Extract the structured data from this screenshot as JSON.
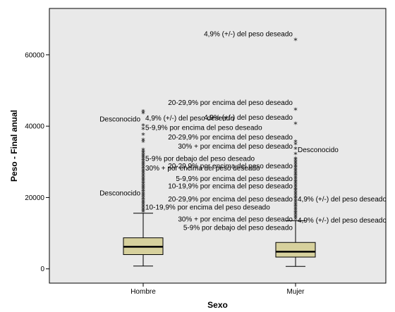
{
  "chart_data": {
    "type": "boxplot",
    "xlabel": "Sexo",
    "ylabel": "Peso - Final anual",
    "ylim": [
      -4000,
      73000
    ],
    "yticks": [
      0,
      20000,
      40000,
      60000
    ],
    "ytick_labels": [
      "0",
      "20000",
      "40000",
      "60000"
    ],
    "plot_background": "#e9e9e9",
    "box_fill": "#d7d19d",
    "categories": [
      "Hombre",
      "Mujer"
    ],
    "boxes": [
      {
        "category": "Hombre",
        "whisker_low": 800,
        "q1": 4000,
        "median": 6200,
        "q3": 8700,
        "whisker_high": 15600,
        "outliers_dense_from": 15800,
        "outliers_dense_to": 33500
      },
      {
        "category": "Mujer",
        "whisker_low": 700,
        "q1": 3300,
        "median": 4800,
        "q3": 7400,
        "whisker_high": 13500,
        "outliers_dense_from": 13800,
        "outliers_dense_to": 31000
      }
    ],
    "extreme_points": [
      {
        "category": "Hombre",
        "value": 44000
      },
      {
        "category": "Hombre",
        "value": 43500
      },
      {
        "category": "Hombre",
        "value": 40000
      },
      {
        "category": "Hombre",
        "value": 39000
      },
      {
        "category": "Hombre",
        "value": 37500
      },
      {
        "category": "Hombre",
        "value": 36000
      },
      {
        "category": "Hombre",
        "value": 35500
      },
      {
        "category": "Mujer",
        "value": 64000
      },
      {
        "category": "Mujer",
        "value": 44500
      },
      {
        "category": "Mujer",
        "value": 40500
      },
      {
        "category": "Mujer",
        "value": 35500
      },
      {
        "category": "Mujer",
        "value": 34800
      },
      {
        "category": "Mujer",
        "value": 33500
      },
      {
        "category": "Mujer",
        "value": 32000
      }
    ],
    "annotations": [
      {
        "category": "Hombre",
        "side": "left",
        "value": 42000,
        "text": "Desconocido"
      },
      {
        "category": "Hombre",
        "side": "right",
        "value": 42300,
        "text": "4,9% (+/-) del peso deseado"
      },
      {
        "category": "Hombre",
        "side": "right",
        "value": 39600,
        "text": "5-9,9% por encima del peso deseado"
      },
      {
        "category": "Hombre",
        "side": "right",
        "value": 30900,
        "text": "5-9% por debajo del peso deseado"
      },
      {
        "category": "Hombre",
        "side": "right",
        "value": 28300,
        "text": "30% + por encima del peso deseado"
      },
      {
        "category": "Hombre",
        "side": "left",
        "value": 21300,
        "text": "Desconocido"
      },
      {
        "category": "Hombre",
        "side": "right",
        "value": 17300,
        "text": "10-19,9% por encima del peso deseado"
      },
      {
        "category": "Mujer",
        "side": "left",
        "value": 65900,
        "text": "4,9% (+/-) del peso deseado"
      },
      {
        "category": "Mujer",
        "side": "left",
        "value": 46600,
        "text": "20-29,9% por encima del peso deseado"
      },
      {
        "category": "Mujer",
        "side": "left",
        "value": 42500,
        "text": "4,9% (+/-) del peso deseado"
      },
      {
        "category": "Mujer",
        "side": "left",
        "value": 37000,
        "text": "20-29,9% por encima del peso deseado"
      },
      {
        "category": "Mujer",
        "side": "left",
        "value": 34400,
        "text": "30% + por encima del peso deseado"
      },
      {
        "category": "Mujer",
        "side": "right",
        "value": 33400,
        "text": "Desconocido"
      },
      {
        "category": "Mujer",
        "side": "left",
        "value": 28900,
        "text": "20-29,9% por encima del peso deseado"
      },
      {
        "category": "Mujer",
        "side": "left",
        "value": 25300,
        "text": "5-9,9% por encima del peso deseado"
      },
      {
        "category": "Mujer",
        "side": "left",
        "value": 23200,
        "text": "10-19,9% por encima del peso deseado"
      },
      {
        "category": "Mujer",
        "side": "left",
        "value": 19600,
        "text": "20-29,9% por encima del peso deseado"
      },
      {
        "category": "Mujer",
        "side": "right",
        "value": 19600,
        "text": "4,9% (+/-) del peso deseado"
      },
      {
        "category": "Mujer",
        "side": "left",
        "value": 14000,
        "text": "30% + por encima del peso deseado"
      },
      {
        "category": "Mujer",
        "side": "right",
        "value": 13700,
        "text": "4,9% (+/-) del peso deseado"
      },
      {
        "category": "Mujer",
        "side": "left",
        "value": 11600,
        "text": "5-9% por debajo del peso deseado"
      }
    ]
  }
}
